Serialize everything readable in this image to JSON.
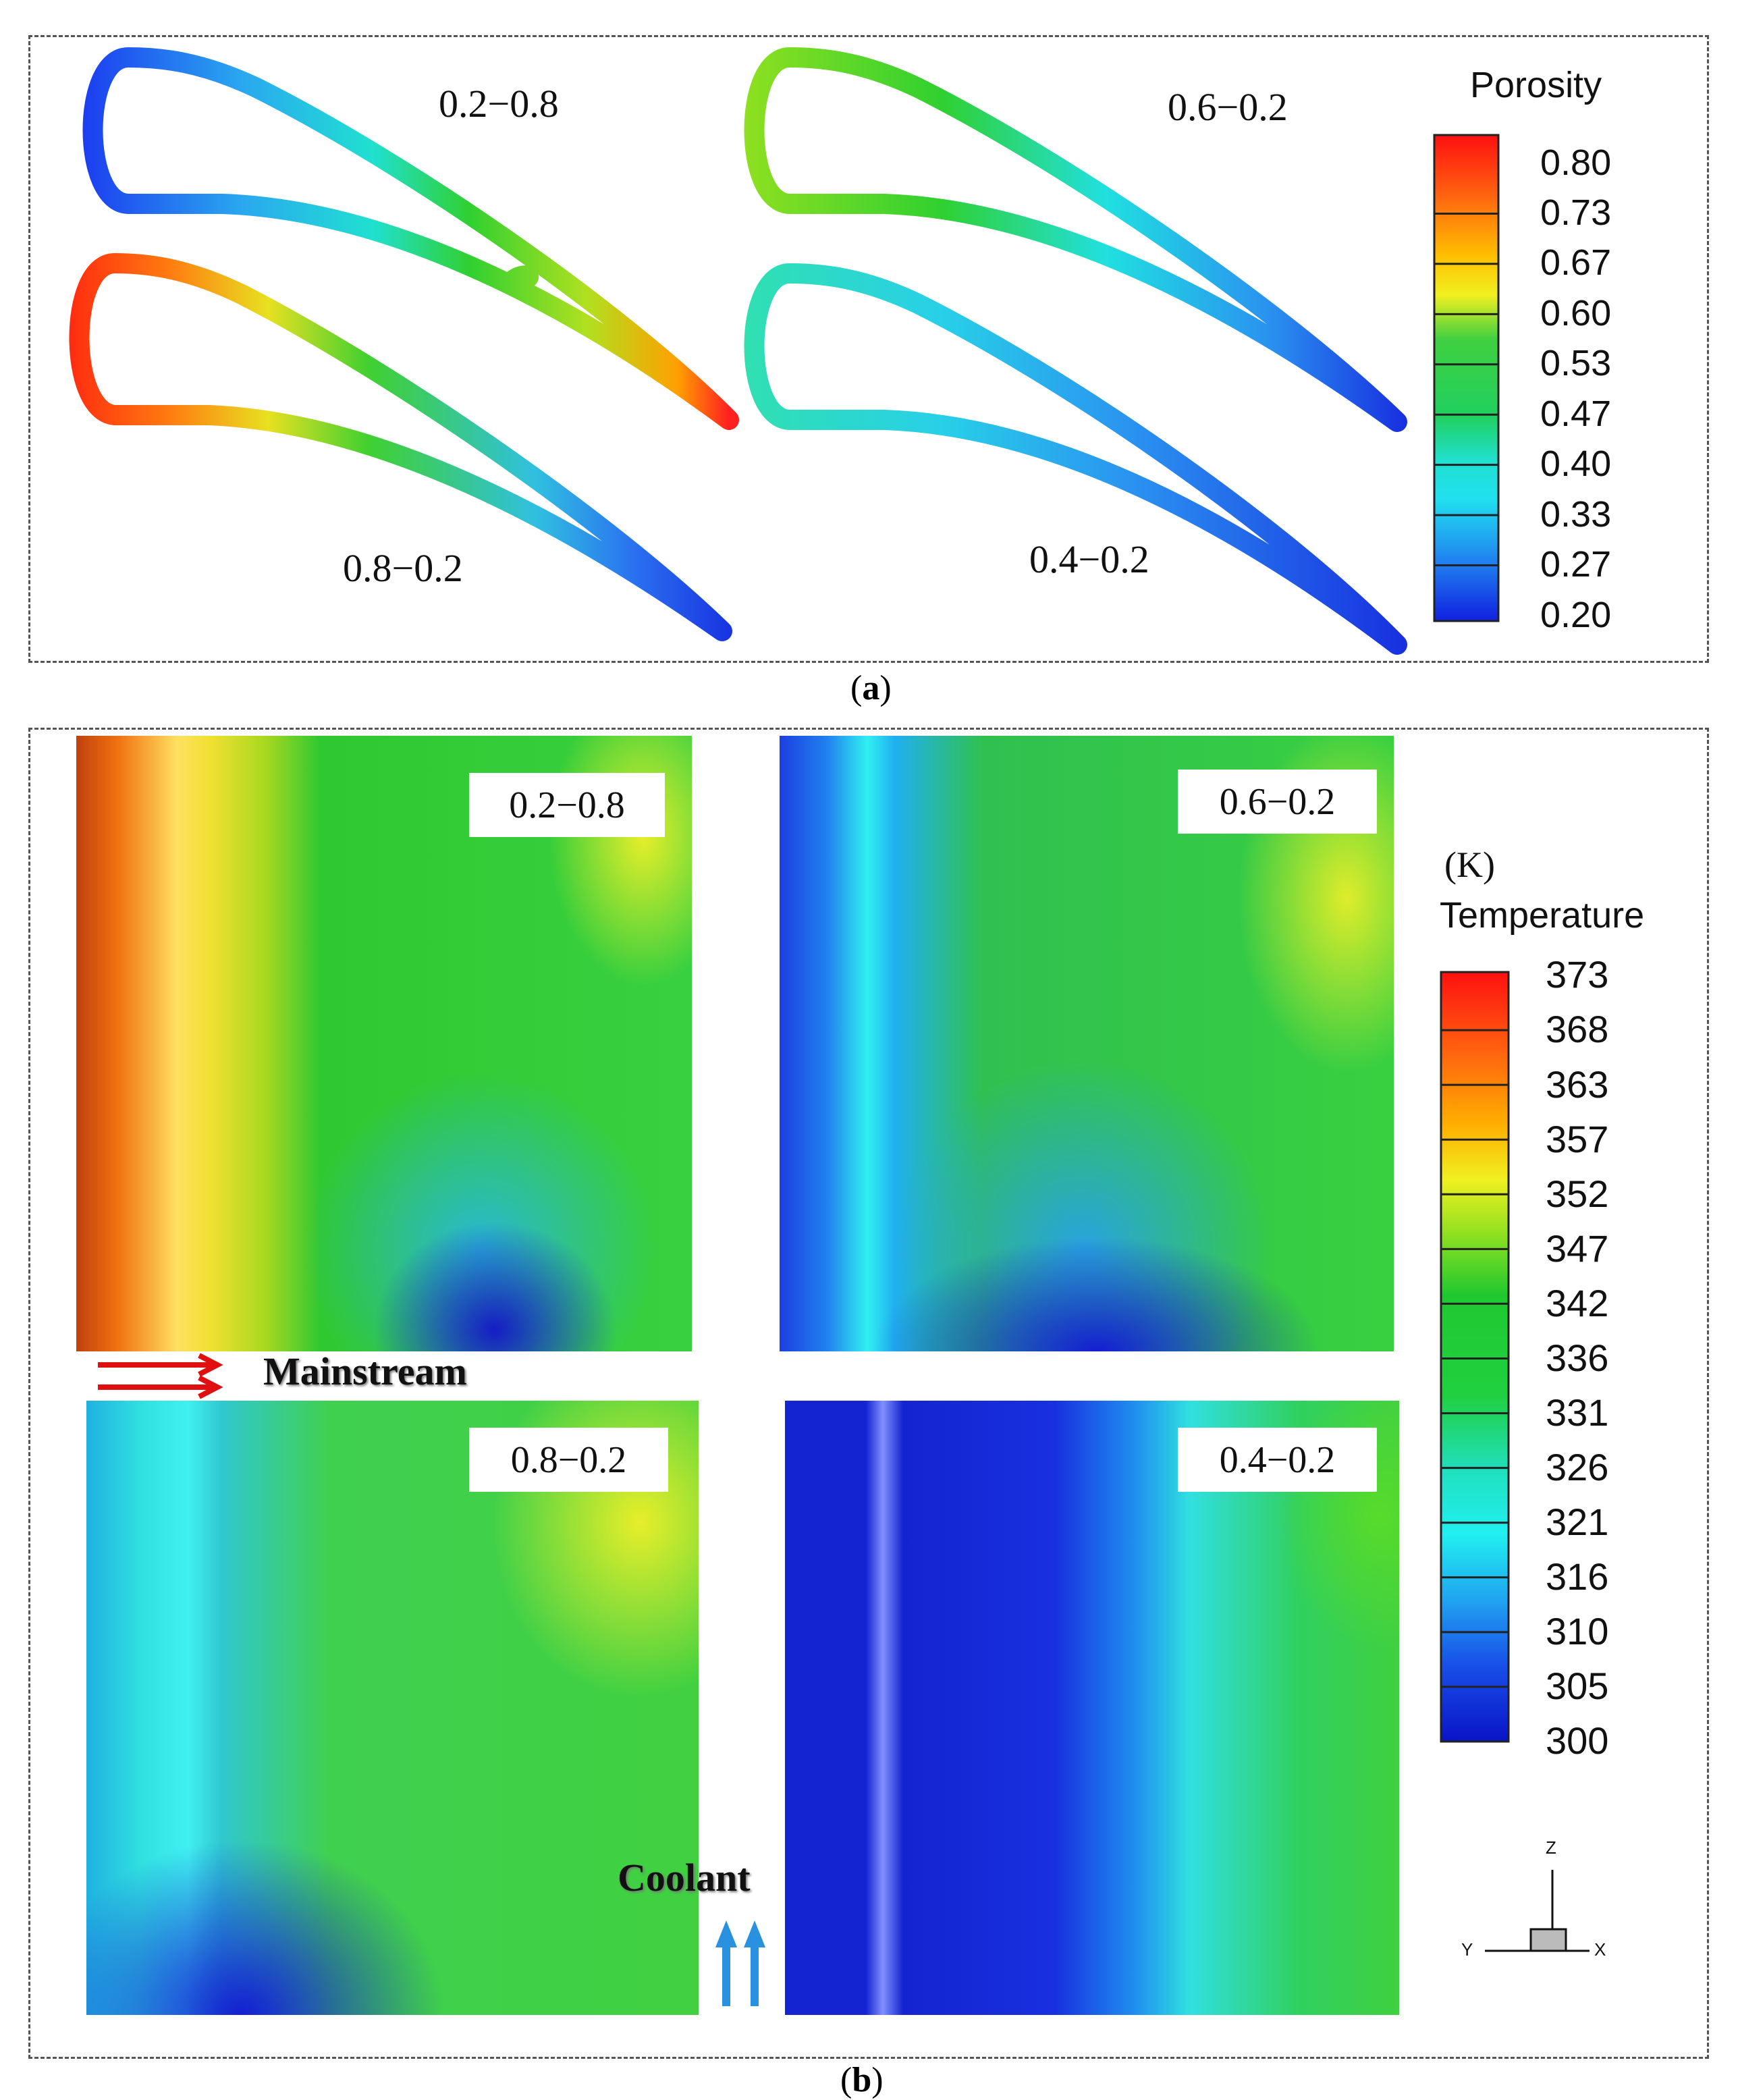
{
  "panel_a": {
    "caption": "a",
    "cases": [
      {
        "label": "0.2−0.8"
      },
      {
        "label": "0.6−0.2"
      },
      {
        "label": "0.8−0.2"
      },
      {
        "label": "0.4−0.2"
      }
    ],
    "legend": {
      "title": "Porosity",
      "ticks": [
        "0.80",
        "0.73",
        "0.67",
        "0.60",
        "0.53",
        "0.47",
        "0.40",
        "0.33",
        "0.27",
        "0.20"
      ]
    }
  },
  "panel_b": {
    "caption": "b",
    "cases": [
      {
        "label": "0.2−0.8"
      },
      {
        "label": "0.6−0.2"
      },
      {
        "label": "0.8−0.2"
      },
      {
        "label": "0.4−0.2"
      }
    ],
    "mainstream_label": "Mainstream",
    "coolant_label": "Coolant",
    "legend": {
      "unit": "(K)",
      "title": "Temperature",
      "ticks": [
        "373",
        "368",
        "363",
        "357",
        "352",
        "347",
        "342",
        "336",
        "331",
        "326",
        "321",
        "316",
        "310",
        "305",
        "300"
      ]
    },
    "axes": {
      "z": "Z",
      "y": "Y",
      "x": "X"
    }
  },
  "colors": {
    "red": "#ff2a1a",
    "orange": "#ff8c00",
    "yellow": "#f4f000",
    "green": "#20d020",
    "cyan": "#20f0f0",
    "blue": "#1828e0",
    "darkblue": "#0a14c8"
  }
}
